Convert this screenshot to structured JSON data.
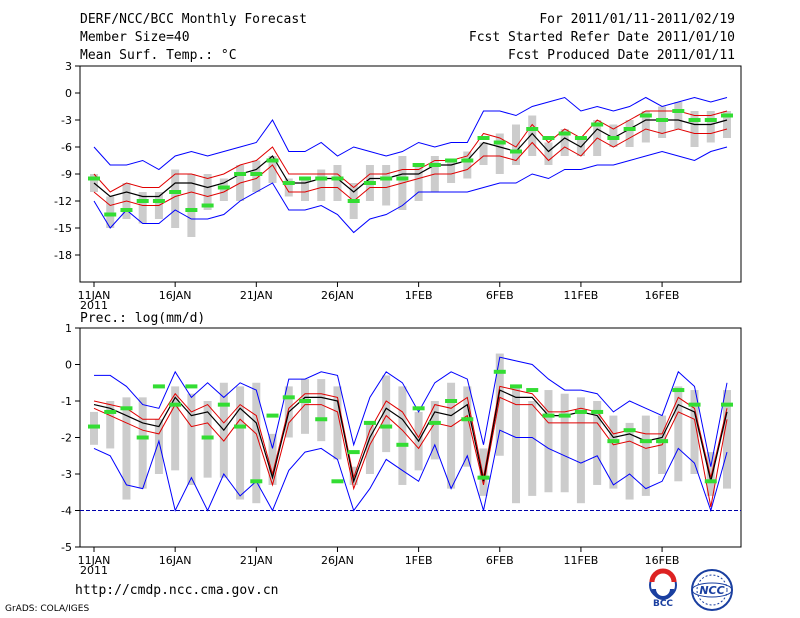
{
  "header": {
    "title": "DERF/NCC/BCC Monthly Forecast",
    "member_size": "Member Size=40",
    "variable": "Mean Surf. Temp.: °C",
    "period": "For 2011/01/11-2011/02/19",
    "fcst_started": "Fcst Started Refer Date 2011/01/10",
    "fcst_produced": "Fcst Produced Date 2011/01/11"
  },
  "footer": {
    "url": "http://cmdp.ncc.cma.gov.cn",
    "credit": "GrADS: COLA/IGES",
    "logo_bcc": "BCC",
    "logo_ncc": "NCC"
  },
  "colors": {
    "max_line": "#0000ff",
    "min_line": "#0000ff",
    "spread_line": "#e00000",
    "ensemble_mean": "#000000",
    "member_bar": "#cccccc",
    "observed_marker": "#33dd33"
  },
  "chart_data": [
    {
      "type": "line",
      "title": "Mean Surf. Temp.: °C",
      "ylabel": "°C",
      "ylim": [
        -21,
        3
      ],
      "yticks": [
        "3",
        "0",
        "-3",
        "-6",
        "-9",
        "-12",
        "-15",
        "-18"
      ],
      "xticks": [
        "11JAN",
        "16JAN",
        "21JAN",
        "26JAN",
        "1FEB",
        "6FEB",
        "11FEB",
        "16FEB"
      ],
      "xticks_year": "2011",
      "days": 40,
      "series": [
        {
          "name": "upper",
          "values": [
            -6,
            -8,
            -8,
            -7.5,
            -8.5,
            -7,
            -6.5,
            -7,
            -6.5,
            -6,
            -5.5,
            -3,
            -6.5,
            -6.5,
            -5.5,
            -7,
            -6,
            -6.5,
            -7,
            -6.5,
            -5.5,
            -6,
            -5.5,
            -5.5,
            -2,
            -2,
            -2.5,
            -1.5,
            -1,
            -0.5,
            -2,
            -1.5,
            -2,
            -1.5,
            -0.5,
            -1.5,
            -1,
            -0.5,
            -1,
            -0.5
          ]
        },
        {
          "name": "plus_sd",
          "values": [
            -9,
            -11,
            -10,
            -10.5,
            -10.5,
            -9,
            -9,
            -9.5,
            -9,
            -8,
            -7.5,
            -6,
            -9,
            -9,
            -9,
            -9,
            -10.5,
            -9,
            -9,
            -8.5,
            -8.5,
            -7.5,
            -7.5,
            -7,
            -4.5,
            -5,
            -6,
            -3.5,
            -5.5,
            -4,
            -5,
            -3,
            -4,
            -3,
            -2,
            -2,
            -2,
            -2.5,
            -2.5,
            -2
          ]
        },
        {
          "name": "mean",
          "values": [
            -10,
            -11.5,
            -11,
            -11.5,
            -11.5,
            -10,
            -10,
            -10.5,
            -10,
            -9,
            -8.5,
            -7,
            -10,
            -10,
            -9.5,
            -9.5,
            -11,
            -9.5,
            -9.5,
            -9,
            -9,
            -8,
            -8,
            -7.5,
            -5.5,
            -6,
            -6.5,
            -4.5,
            -6.5,
            -5,
            -6,
            -4,
            -5,
            -4,
            -3,
            -3,
            -3,
            -3.5,
            -3.5,
            -3
          ]
        },
        {
          "name": "minus_sd",
          "values": [
            -11,
            -12.5,
            -12,
            -12.5,
            -12.5,
            -11.5,
            -11,
            -11.5,
            -11,
            -10,
            -9.5,
            -8,
            -11,
            -11,
            -10.5,
            -10.5,
            -12,
            -10.5,
            -10.5,
            -10,
            -9.5,
            -9,
            -9,
            -8.5,
            -7,
            -7,
            -7.5,
            -5.5,
            -7.5,
            -6,
            -7,
            -5,
            -6,
            -5,
            -4,
            -4.5,
            -4,
            -4.5,
            -4.5,
            -4
          ]
        },
        {
          "name": "lower",
          "values": [
            -12,
            -15,
            -13,
            -14.5,
            -14.5,
            -13,
            -14,
            -14,
            -13.5,
            -12,
            -11,
            -10,
            -13,
            -13,
            -12.5,
            -13.5,
            -15.5,
            -14,
            -13.5,
            -12.5,
            -11,
            -11,
            -11,
            -11,
            -10.5,
            -10,
            -10,
            -9,
            -9.5,
            -8.5,
            -8.5,
            -8,
            -8,
            -7.5,
            -7,
            -6.5,
            -7,
            -7.5,
            -6.5,
            -6
          ]
        },
        {
          "name": "member_bar_top",
          "values": [
            -9,
            -11.5,
            -10,
            -11,
            -11,
            -8.5,
            -9,
            -9,
            -9.5,
            -8,
            -7.5,
            -7,
            -9.5,
            -9.5,
            -8.5,
            -8,
            -10,
            -8,
            -8,
            -7,
            -8,
            -7,
            -7.5,
            -6.5,
            -5.5,
            -4.5,
            -3.5,
            -2.5,
            -5.5,
            -4,
            -5,
            -3,
            -3.5,
            -3,
            -2,
            -1.5,
            -1,
            -2,
            -2,
            -2
          ]
        },
        {
          "name": "member_bar_bottom",
          "values": [
            -11,
            -15,
            -14,
            -14.5,
            -14,
            -15,
            -16,
            -13,
            -12,
            -12,
            -11,
            -10,
            -11.5,
            -12,
            -12,
            -12,
            -14,
            -12,
            -12.5,
            -13,
            -12,
            -11,
            -10,
            -9.5,
            -8,
            -9,
            -8,
            -7,
            -8,
            -7,
            -7,
            -7,
            -6,
            -6,
            -5.5,
            -5,
            -4,
            -6,
            -5.5,
            -5
          ]
        },
        {
          "name": "observed",
          "values": [
            -9.5,
            -13.5,
            -13,
            -12,
            -12,
            -11,
            -13,
            -12.5,
            -10.5,
            -9,
            -9,
            -7.5,
            -10,
            -9.5,
            -9.5,
            -9.5,
            -12,
            -10,
            -9.5,
            -9.5,
            -8,
            -8,
            -7.5,
            -7.5,
            -5,
            -5.5,
            -6.5,
            -4,
            -5,
            -4.5,
            -5,
            -3.5,
            -5,
            -4,
            -2.5,
            -3,
            -2,
            -3,
            -3,
            -2.5
          ]
        }
      ]
    },
    {
      "type": "line",
      "title": "Prec.: log(mm/d)",
      "ylabel": "log(mm/d)",
      "ylim": [
        -5,
        1
      ],
      "yticks": [
        "1",
        "0",
        "-1",
        "-2",
        "-3",
        "-4",
        "-5"
      ],
      "xticks": [
        "11JAN",
        "16JAN",
        "21JAN",
        "26JAN",
        "1FEB",
        "6FEB",
        "11FEB",
        "16FEB"
      ],
      "xticks_year": "2011",
      "days": 40,
      "baseline": -4,
      "series": [
        {
          "name": "upper",
          "values": [
            -0.3,
            -0.3,
            -0.6,
            -1.1,
            -1.2,
            -0.2,
            -0.9,
            -0.5,
            -0.9,
            -0.5,
            -0.7,
            -2.3,
            -0.4,
            -0.4,
            -0.2,
            -0.3,
            -2.2,
            -0.9,
            -0.2,
            -0.5,
            -1.3,
            -0.5,
            -0.2,
            -0.4,
            -2.2,
            0.2,
            0.1,
            0.0,
            -0.4,
            -0.7,
            -0.7,
            -0.8,
            -1.3,
            -1.0,
            -1.2,
            -1.4,
            -0.2,
            -0.6,
            -2.8,
            -0.5
          ]
        },
        {
          "name": "plus_sd",
          "values": [
            -1.0,
            -1.1,
            -1.2,
            -1.5,
            -1.5,
            -0.8,
            -1.3,
            -1.1,
            -1.6,
            -1.1,
            -1.4,
            -3.0,
            -1.2,
            -0.8,
            -0.8,
            -0.9,
            -3.1,
            -1.8,
            -1.0,
            -1.3,
            -2.0,
            -1.1,
            -1.2,
            -0.9,
            -3.1,
            -0.6,
            -0.7,
            -0.8,
            -1.3,
            -1.3,
            -1.2,
            -1.3,
            -1.9,
            -1.8,
            -1.9,
            -1.9,
            -0.9,
            -1.2,
            -3.1,
            -1.2
          ]
        },
        {
          "name": "mean",
          "values": [
            -1.1,
            -1.2,
            -1.4,
            -1.6,
            -1.7,
            -0.9,
            -1.4,
            -1.3,
            -1.8,
            -1.2,
            -1.6,
            -3.1,
            -1.3,
            -0.9,
            -0.9,
            -1.0,
            -3.2,
            -2.0,
            -1.2,
            -1.5,
            -2.1,
            -1.3,
            -1.4,
            -1.1,
            -3.2,
            -0.7,
            -0.9,
            -0.9,
            -1.4,
            -1.4,
            -1.3,
            -1.4,
            -2.0,
            -1.9,
            -2.1,
            -2.0,
            -1.1,
            -1.3,
            -3.2,
            -1.3
          ]
        },
        {
          "name": "minus_sd",
          "values": [
            -1.2,
            -1.4,
            -1.6,
            -1.8,
            -1.9,
            -1.1,
            -1.7,
            -1.6,
            -2.1,
            -1.5,
            -1.9,
            -3.3,
            -1.6,
            -1.1,
            -1.1,
            -1.3,
            -3.4,
            -2.2,
            -1.4,
            -1.8,
            -2.3,
            -1.6,
            -1.7,
            -1.4,
            -3.3,
            -0.9,
            -1.1,
            -1.1,
            -1.6,
            -1.6,
            -1.6,
            -1.6,
            -2.2,
            -2.1,
            -2.3,
            -2.2,
            -1.3,
            -1.5,
            -3.9,
            -1.5
          ]
        },
        {
          "name": "lower",
          "values": [
            -2.3,
            -2.5,
            -3.3,
            -3.4,
            -2.1,
            -4.0,
            -3.1,
            -4.0,
            -3.0,
            -3.6,
            -3.2,
            -4.0,
            -2.9,
            -2.4,
            -2.3,
            -2.6,
            -4.0,
            -3.4,
            -2.6,
            -2.9,
            -3.2,
            -2.2,
            -3.4,
            -2.5,
            -4.0,
            -1.8,
            -2.0,
            -2.0,
            -2.3,
            -2.5,
            -2.7,
            -2.5,
            -3.3,
            -3.0,
            -3.4,
            -3.2,
            -2.3,
            -2.7,
            -4.0,
            -2.4
          ]
        },
        {
          "name": "member_bar_top",
          "values": [
            -1.3,
            -1.0,
            -0.9,
            -0.9,
            -1.5,
            -0.6,
            -0.8,
            -1.0,
            -0.5,
            -0.6,
            -0.5,
            -1.9,
            -0.6,
            -0.4,
            -0.4,
            -0.6,
            -2.8,
            -1.6,
            -0.3,
            -0.6,
            -1.3,
            -1.0,
            -0.5,
            -0.6,
            -2.3,
            0.3,
            -0.6,
            -1.0,
            -0.7,
            -0.8,
            -0.9,
            -1.0,
            -1.4,
            -1.6,
            -1.4,
            -1.4,
            -0.6,
            -0.7,
            -2.4,
            -0.7
          ]
        },
        {
          "name": "member_bar_bottom",
          "values": [
            -2.2,
            -2.3,
            -3.7,
            -3.4,
            -3.0,
            -2.9,
            -3.3,
            -3.1,
            -3.1,
            -3.7,
            -3.8,
            -3.3,
            -2.0,
            -1.9,
            -2.1,
            -2.6,
            -3.3,
            -3.0,
            -2.4,
            -3.3,
            -2.9,
            -2.6,
            -3.4,
            -2.8,
            -3.6,
            -2.5,
            -3.8,
            -3.6,
            -3.5,
            -3.5,
            -3.8,
            -3.3,
            -3.4,
            -3.7,
            -3.6,
            -3.0,
            -3.2,
            -3.0,
            -3.6,
            -3.4
          ]
        },
        {
          "name": "observed",
          "values": [
            -1.7,
            -1.3,
            -1.2,
            -2.0,
            -0.6,
            -1.1,
            -0.6,
            -2.0,
            -1.1,
            -1.7,
            -3.2,
            -1.4,
            -0.9,
            -1.0,
            -1.5,
            -3.2,
            -2.4,
            -1.6,
            -1.7,
            -2.2,
            -1.2,
            -1.6,
            -1.0,
            -1.5,
            -3.1,
            -0.2,
            -0.6,
            -0.7,
            -1.4,
            -1.4,
            -1.3,
            -1.3,
            -2.1,
            -1.8,
            -2.1,
            -2.1,
            -0.7,
            -1.1,
            -3.2,
            -1.1
          ]
        }
      ]
    }
  ]
}
